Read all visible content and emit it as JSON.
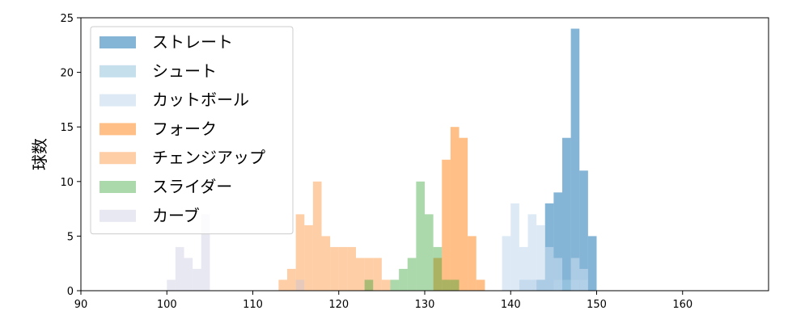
{
  "chart_data": {
    "type": "histogram",
    "title": "",
    "xlabel": "",
    "ylabel": "球数",
    "xlim": [
      90,
      170
    ],
    "ylim": [
      0,
      25
    ],
    "xticks": [
      90,
      100,
      110,
      120,
      130,
      140,
      150,
      160
    ],
    "yticks": [
      0,
      5,
      10,
      15,
      20,
      25
    ],
    "grid": false,
    "legend_position": "top-left",
    "series": [
      {
        "name": "ストレート",
        "color": "#1f77b4",
        "alpha": 0.55,
        "bins": [
          [
            143,
            144,
            1
          ],
          [
            144,
            145,
            8
          ],
          [
            145,
            146,
            9
          ],
          [
            146,
            147,
            14
          ],
          [
            147,
            148,
            24
          ],
          [
            148,
            149,
            11
          ],
          [
            149,
            150,
            5
          ]
        ]
      },
      {
        "name": "シュート",
        "color": "#9ecae1",
        "alpha": 0.6,
        "bins": [
          [
            141,
            142,
            1
          ],
          [
            142,
            143,
            1
          ],
          [
            145,
            146,
            1
          ],
          [
            146,
            147,
            1
          ],
          [
            147,
            148,
            1
          ],
          [
            148,
            149,
            1
          ]
        ]
      },
      {
        "name": "カットボール",
        "color": "#c6dbef",
        "alpha": 0.6,
        "bins": [
          [
            139,
            140,
            5
          ],
          [
            140,
            141,
            8
          ],
          [
            141,
            142,
            4
          ],
          [
            142,
            143,
            7
          ],
          [
            143,
            144,
            6
          ],
          [
            144,
            145,
            4
          ],
          [
            145,
            146,
            3
          ],
          [
            147,
            148,
            3
          ],
          [
            148,
            149,
            2
          ]
        ]
      },
      {
        "name": "フォーク",
        "color": "#ff7f0e",
        "alpha": 0.5,
        "bins": [
          [
            131,
            132,
            3
          ],
          [
            132,
            133,
            12
          ],
          [
            133,
            134,
            15
          ],
          [
            134,
            135,
            14
          ],
          [
            135,
            136,
            5
          ],
          [
            136,
            137,
            1
          ]
        ]
      },
      {
        "name": "チェンジアップ",
        "color": "#fdae6b",
        "alpha": 0.6,
        "bins": [
          [
            113,
            114,
            1
          ],
          [
            114,
            115,
            2
          ],
          [
            115,
            116,
            7
          ],
          [
            116,
            117,
            6
          ],
          [
            117,
            118,
            10
          ],
          [
            118,
            119,
            5
          ],
          [
            119,
            120,
            4
          ],
          [
            120,
            121,
            4
          ],
          [
            121,
            122,
            4
          ],
          [
            122,
            123,
            3
          ],
          [
            123,
            124,
            3
          ],
          [
            124,
            125,
            3
          ],
          [
            125,
            126,
            1
          ]
        ]
      },
      {
        "name": "スライダー",
        "color": "#2ca02c",
        "alpha": 0.4,
        "bins": [
          [
            123,
            124,
            1
          ],
          [
            126,
            127,
            1
          ],
          [
            127,
            128,
            2
          ],
          [
            128,
            129,
            3
          ],
          [
            129,
            130,
            10
          ],
          [
            130,
            131,
            7
          ],
          [
            131,
            132,
            4
          ],
          [
            132,
            133,
            1
          ],
          [
            133,
            134,
            1
          ]
        ]
      },
      {
        "name": "カーブ",
        "color": "#c5c5de",
        "alpha": 0.4,
        "bins": [
          [
            100,
            101,
            1
          ],
          [
            101,
            102,
            4
          ],
          [
            102,
            103,
            3
          ],
          [
            103,
            104,
            2
          ],
          [
            104,
            105,
            7
          ],
          [
            115,
            116,
            1
          ]
        ]
      }
    ]
  }
}
